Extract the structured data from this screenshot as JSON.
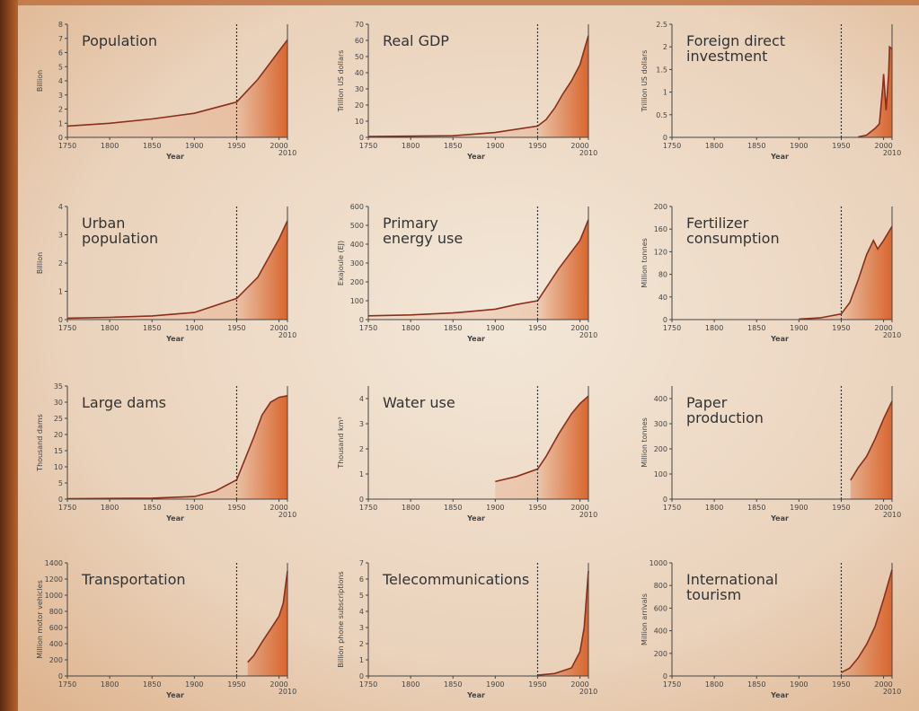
{
  "chart_data": [
    {
      "type": "area",
      "title": [
        "Population"
      ],
      "ylabel": "Billion",
      "xlabel": "Year",
      "x": [
        1750,
        1800,
        1850,
        1900,
        1950,
        1975,
        2000,
        2010
      ],
      "values": [
        0.8,
        1.0,
        1.3,
        1.7,
        2.5,
        4.1,
        6.1,
        6.9
      ],
      "xlim": [
        1750,
        2010
      ],
      "xticks": [
        1750,
        1800,
        1850,
        1900,
        1950,
        2000,
        2010
      ],
      "ylim": [
        0,
        8
      ],
      "yticks": [
        0,
        1,
        2,
        3,
        4,
        5,
        6,
        7,
        8
      ],
      "vline": 1950,
      "color": "#8b2e1c",
      "fill": "#d9662e"
    },
    {
      "type": "area",
      "title": [
        "Real GDP"
      ],
      "ylabel": "Trillion US dollars",
      "xlabel": "Year",
      "x": [
        1750,
        1850,
        1900,
        1950,
        1960,
        1970,
        1980,
        1990,
        2000,
        2010
      ],
      "values": [
        0.5,
        1,
        3,
        7,
        11,
        18,
        27,
        35,
        45,
        63
      ],
      "xlim": [
        1750,
        2010
      ],
      "xticks": [
        1750,
        1800,
        1850,
        1900,
        1950,
        2000,
        2010
      ],
      "ylim": [
        0,
        70
      ],
      "yticks": [
        0,
        10,
        20,
        30,
        40,
        50,
        60,
        70
      ],
      "vline": 1950,
      "color": "#8b2e1c",
      "fill": "#d9662e"
    },
    {
      "type": "area",
      "title": [
        "Foreign direct",
        "investment"
      ],
      "ylabel": "Trillion US dollars",
      "xlabel": "Year",
      "x": [
        1970,
        1980,
        1990,
        1995,
        1999,
        2000,
        2003,
        2006,
        2007,
        2010
      ],
      "values": [
        0.01,
        0.05,
        0.2,
        0.3,
        1.1,
        1.4,
        0.6,
        1.4,
        2.0,
        1.95
      ],
      "xlim": [
        1750,
        2010
      ],
      "xticks": [
        1750,
        1800,
        1850,
        1900,
        1950,
        2000,
        2010
      ],
      "ylim": [
        0,
        2.5
      ],
      "yticks": [
        0,
        0.5,
        1,
        1.5,
        2,
        2.5
      ],
      "vline": 1950,
      "color": "#8b2e1c",
      "fill": "#d9662e"
    },
    {
      "type": "area",
      "title": [
        "Urban",
        "population"
      ],
      "ylabel": "Billion",
      "xlabel": "Year",
      "x": [
        1750,
        1800,
        1850,
        1900,
        1950,
        1975,
        2000,
        2010
      ],
      "values": [
        0.05,
        0.08,
        0.13,
        0.25,
        0.75,
        1.5,
        2.85,
        3.5
      ],
      "xlim": [
        1750,
        2010
      ],
      "xticks": [
        1750,
        1800,
        1850,
        1900,
        1950,
        2000,
        2010
      ],
      "ylim": [
        0,
        4
      ],
      "yticks": [
        0,
        1,
        2,
        3,
        4
      ],
      "vline": 1950,
      "color": "#8b2e1c",
      "fill": "#d9662e"
    },
    {
      "type": "area",
      "title": [
        "Primary",
        "energy use"
      ],
      "ylabel": "Exajoule (EJ)",
      "xlabel": "Year",
      "x": [
        1750,
        1800,
        1850,
        1900,
        1925,
        1950,
        1975,
        2000,
        2010
      ],
      "values": [
        20,
        25,
        35,
        55,
        80,
        100,
        270,
        420,
        530
      ],
      "xlim": [
        1750,
        2010
      ],
      "xticks": [
        1750,
        1800,
        1850,
        1900,
        1950,
        2000,
        2010
      ],
      "ylim": [
        0,
        600
      ],
      "yticks": [
        0,
        100,
        200,
        300,
        400,
        500,
        600
      ],
      "vline": 1950,
      "color": "#8b2e1c",
      "fill": "#d9662e"
    },
    {
      "type": "area",
      "title": [
        "Fertilizer",
        "consumption"
      ],
      "ylabel": "Million tonnes",
      "xlabel": "Year",
      "x": [
        1900,
        1925,
        1950,
        1960,
        1970,
        1980,
        1988,
        1993,
        2000,
        2010
      ],
      "values": [
        1,
        3,
        10,
        30,
        70,
        115,
        140,
        125,
        140,
        165
      ],
      "xlim": [
        1750,
        2010
      ],
      "xticks": [
        1750,
        1800,
        1850,
        1900,
        1950,
        2000,
        2010
      ],
      "ylim": [
        0,
        200
      ],
      "yticks": [
        0,
        40,
        80,
        120,
        160,
        200
      ],
      "vline": 1950,
      "color": "#8b2e1c",
      "fill": "#d9662e"
    },
    {
      "type": "area",
      "title": [
        "Large dams"
      ],
      "ylabel": "Thousand dams",
      "xlabel": "Year",
      "x": [
        1750,
        1850,
        1900,
        1925,
        1950,
        1970,
        1980,
        1990,
        2000,
        2010
      ],
      "values": [
        0.1,
        0.3,
        0.8,
        2.5,
        6,
        19,
        26,
        30,
        31.5,
        32
      ],
      "xlim": [
        1750,
        2010
      ],
      "xticks": [
        1750,
        1800,
        1850,
        1900,
        1950,
        2000,
        2010
      ],
      "ylim": [
        0,
        35
      ],
      "yticks": [
        0,
        5,
        10,
        15,
        20,
        25,
        30,
        35
      ],
      "vline": 1950,
      "color": "#8b2e1c",
      "fill": "#d9662e"
    },
    {
      "type": "area",
      "title": [
        "Water use"
      ],
      "ylabel": "Thousand km³",
      "xlabel": "Year",
      "x": [
        1900,
        1925,
        1950,
        1960,
        1975,
        1990,
        2000,
        2010
      ],
      "values": [
        0.7,
        0.9,
        1.2,
        1.7,
        2.6,
        3.4,
        3.8,
        4.1
      ],
      "xlim": [
        1750,
        2010
      ],
      "xticks": [
        1750,
        1800,
        1850,
        1900,
        1950,
        2000,
        2010
      ],
      "ylim": [
        0,
        4.5
      ],
      "yticks": [
        0,
        1,
        2,
        3,
        4
      ],
      "vline": 1950,
      "color": "#8b2e1c",
      "fill": "#d9662e"
    },
    {
      "type": "area",
      "title": [
        "Paper",
        "production"
      ],
      "ylabel": "Million tonnes",
      "xlabel": "Year",
      "x": [
        1961,
        1970,
        1980,
        1990,
        2000,
        2010
      ],
      "values": [
        75,
        125,
        170,
        240,
        320,
        390
      ],
      "xlim": [
        1750,
        2010
      ],
      "xticks": [
        1750,
        1800,
        1850,
        1900,
        1950,
        2000,
        2010
      ],
      "ylim": [
        0,
        450
      ],
      "yticks": [
        0,
        100,
        200,
        300,
        400
      ],
      "vline": 1950,
      "color": "#8b2e1c",
      "fill": "#d9662e"
    },
    {
      "type": "area",
      "title": [
        "Transportation"
      ],
      "ylabel": "Million motor vehicles",
      "xlabel": "Year",
      "x": [
        1963,
        1970,
        1980,
        1990,
        2000,
        2005,
        2010
      ],
      "values": [
        170,
        250,
        420,
        580,
        740,
        900,
        1300
      ],
      "xlim": [
        1750,
        2010
      ],
      "xticks": [
        1750,
        1800,
        1850,
        1900,
        1950,
        2000,
        2010
      ],
      "ylim": [
        0,
        1400
      ],
      "yticks": [
        0,
        200,
        400,
        600,
        800,
        1000,
        1200,
        1400
      ],
      "vline": 1950,
      "color": "#8b2e1c",
      "fill": "#d9662e"
    },
    {
      "type": "area",
      "title": [
        "Telecommunications"
      ],
      "ylabel": "Billion phone subscriptions",
      "xlabel": "Year",
      "x": [
        1950,
        1970,
        1990,
        2000,
        2005,
        2010
      ],
      "values": [
        0.05,
        0.15,
        0.5,
        1.5,
        3,
        6.5
      ],
      "xlim": [
        1750,
        2010
      ],
      "xticks": [
        1750,
        1800,
        1850,
        1900,
        1950,
        2000,
        2010
      ],
      "ylim": [
        0,
        7
      ],
      "yticks": [
        0,
        1,
        2,
        3,
        4,
        5,
        6,
        7
      ],
      "vline": 1950,
      "color": "#8b2e1c",
      "fill": "#d9662e"
    },
    {
      "type": "area",
      "title": [
        "International",
        "tourism"
      ],
      "ylabel": "Million arrivals",
      "xlabel": "Year",
      "x": [
        1950,
        1960,
        1970,
        1980,
        1990,
        2000,
        2010
      ],
      "values": [
        30,
        70,
        160,
        280,
        440,
        680,
        940
      ],
      "xlim": [
        1750,
        2010
      ],
      "xticks": [
        1750,
        1800,
        1850,
        1900,
        1950,
        2000,
        2010
      ],
      "ylim": [
        0,
        1000
      ],
      "yticks": [
        0,
        200,
        400,
        600,
        800,
        1000
      ],
      "vline": 1950,
      "color": "#8b2e1c",
      "fill": "#d9662e"
    }
  ]
}
